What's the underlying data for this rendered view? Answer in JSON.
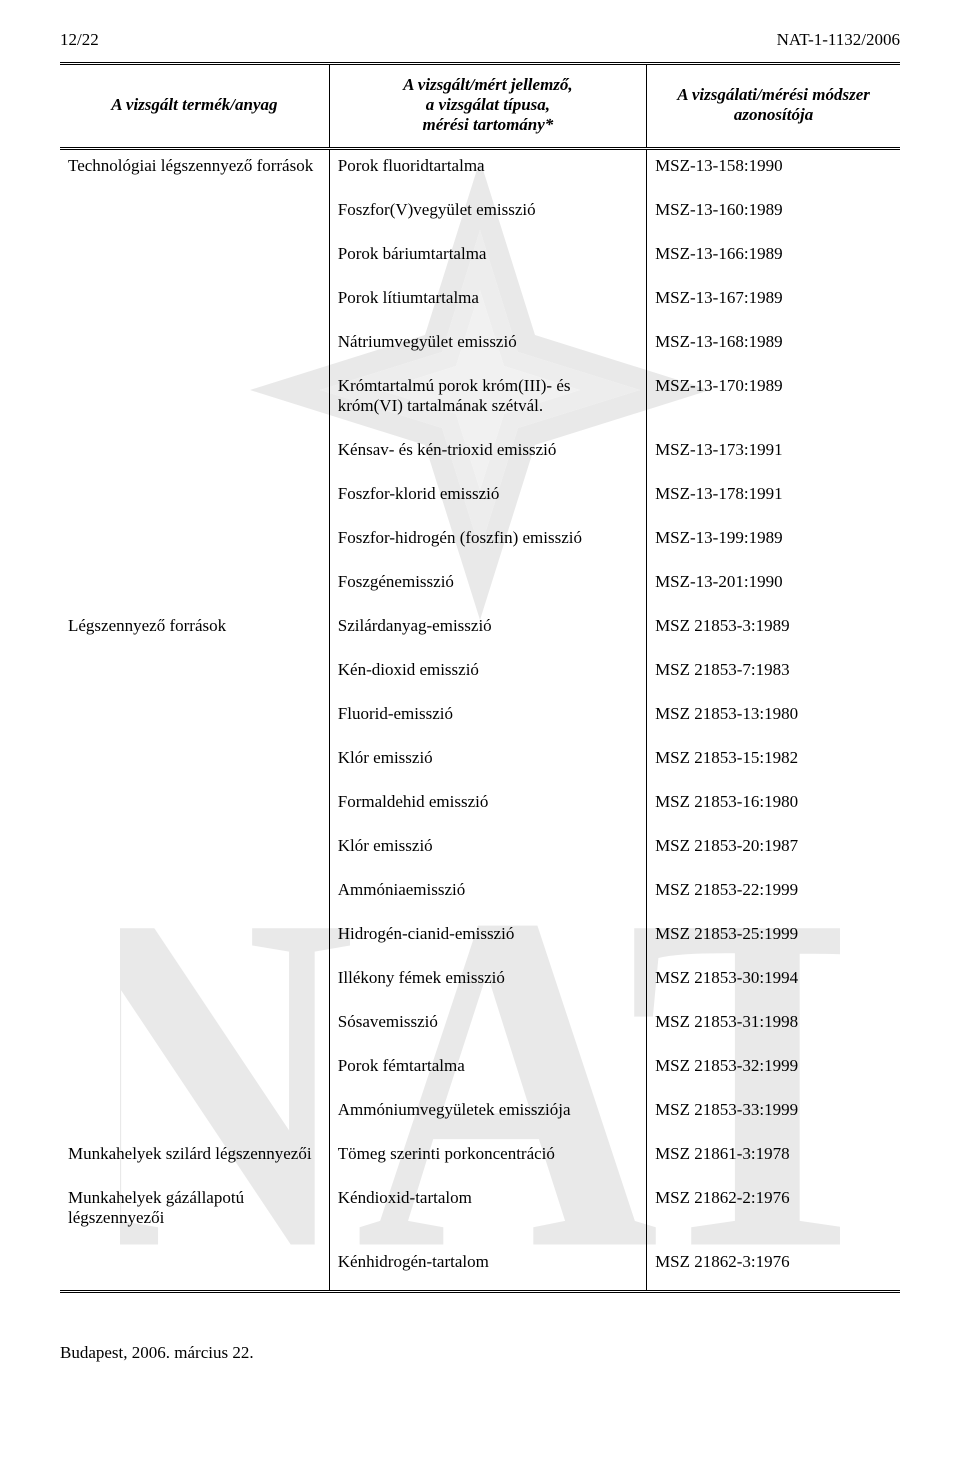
{
  "page_header": {
    "left": "12/22",
    "right": "NAT-1-1132/2006"
  },
  "columns": {
    "c1": "A vizsgált termék/anyag",
    "c2_l1": "A vizsgált/mért jellemző,",
    "c2_l2": "a vizsgálat típusa,",
    "c2_l3": "mérési tartomány*",
    "c3_l1": "A vizsgálati/mérési módszer",
    "c3_l2": "azonosítója"
  },
  "rows": [
    {
      "c1": "Technológiai légszennyező források",
      "c2": "Porok fluoridtartalma",
      "c3": "MSZ-13-158:1990"
    },
    {
      "c1": "",
      "c2": "Foszfor(V)vegyület emisszió",
      "c3": "MSZ-13-160:1989"
    },
    {
      "c1": "",
      "c2": "Porok báriumtartalma",
      "c3": "MSZ-13-166:1989"
    },
    {
      "c1": "",
      "c2": "Porok lítiumtartalma",
      "c3": "MSZ-13-167:1989"
    },
    {
      "c1": "",
      "c2": "Nátriumvegyület emisszió",
      "c3": "MSZ-13-168:1989"
    },
    {
      "c1": "",
      "c2": "Krómtartalmú porok króm(III)- és króm(VI) tartalmának szétvál.",
      "c3": "MSZ-13-170:1989"
    },
    {
      "c1": "",
      "c2": "Kénsav- és kén-trioxid emisszió",
      "c3": "MSZ-13-173:1991"
    },
    {
      "c1": "",
      "c2": "Foszfor-klorid emisszió",
      "c3": "MSZ-13-178:1991"
    },
    {
      "c1": "",
      "c2": "Foszfor-hidrogén (foszfin) emisszió",
      "c3": "MSZ-13-199:1989"
    },
    {
      "c1": "",
      "c2": "Foszgénemisszió",
      "c3": "MSZ-13-201:1990"
    },
    {
      "c1": "Légszennyező források",
      "c2": "Szilárdanyag-emisszió",
      "c3": "MSZ 21853-3:1989"
    },
    {
      "c1": "",
      "c2": "Kén-dioxid emisszió",
      "c3": "MSZ 21853-7:1983"
    },
    {
      "c1": "",
      "c2": "Fluorid-emisszió",
      "c3": "MSZ 21853-13:1980"
    },
    {
      "c1": "",
      "c2": "Klór emisszió",
      "c3": "MSZ 21853-15:1982"
    },
    {
      "c1": "",
      "c2": "Formaldehid emisszió",
      "c3": "MSZ 21853-16:1980"
    },
    {
      "c1": "",
      "c2": "Klór emisszió",
      "c3": "MSZ 21853-20:1987"
    },
    {
      "c1": "",
      "c2": "Ammóniaemisszió",
      "c3": "MSZ 21853-22:1999"
    },
    {
      "c1": "",
      "c2": "Hidrogén-cianid-emisszió",
      "c3": "MSZ 21853-25:1999"
    },
    {
      "c1": "",
      "c2": "Illékony fémek emisszió",
      "c3": "MSZ 21853-30:1994"
    },
    {
      "c1": "",
      "c2": "Sósavemisszió",
      "c3": "MSZ 21853-31:1998"
    },
    {
      "c1": "",
      "c2": "Porok fémtartalma",
      "c3": "MSZ 21853-32:1999"
    },
    {
      "c1": "",
      "c2": "Ammóniumvegyületek emissziója",
      "c3": "MSZ 21853-33:1999"
    },
    {
      "c1": "Munkahelyek szilárd légszennyezői",
      "c2": "Tömeg szerinti porkoncentráció",
      "c3": "MSZ 21861-3:1978"
    },
    {
      "c1": "Munkahelyek gázállapotú légszennyezői",
      "c2": "Kéndioxid-tartalom",
      "c3": "MSZ 21862-2:1976"
    },
    {
      "c1": "",
      "c2": "Kénhidrogén-tartalom",
      "c3": "MSZ 21862-3:1976"
    }
  ],
  "footer": "Budapest, 2006. március 22."
}
